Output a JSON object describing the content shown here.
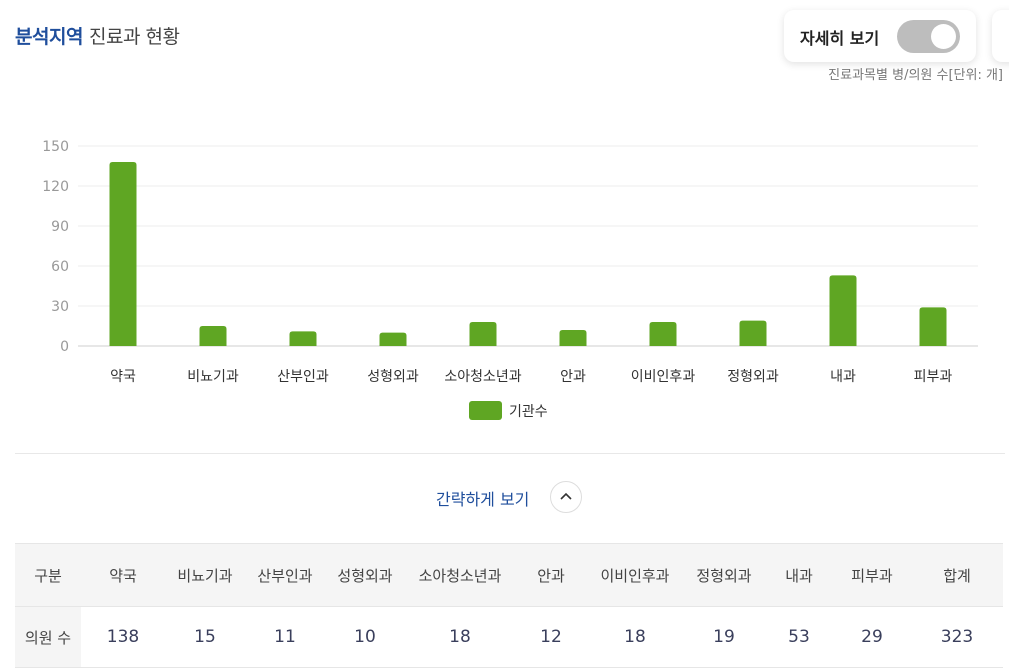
{
  "header": {
    "title_accent": "분석지역",
    "title_rest": "진료과 현황",
    "toggle_label": "자세히 보기",
    "toggle_on": false,
    "unit_note": "진료과목별 병/의원 수[단위: 개]"
  },
  "chart_data": {
    "type": "bar",
    "categories": [
      "약국",
      "비뇨기과",
      "산부인과",
      "성형외과",
      "소아청소년과",
      "안과",
      "이비인후과",
      "정형외과",
      "내과",
      "피부과"
    ],
    "series": [
      {
        "name": "기관수",
        "values": [
          138,
          15,
          11,
          10,
          18,
          12,
          18,
          19,
          53,
          29
        ],
        "color": "#5fa623"
      }
    ],
    "ylim": [
      0,
      150
    ],
    "yticks": [
      0,
      30,
      60,
      90,
      120,
      150
    ],
    "grid": true,
    "legend_position": "bottom"
  },
  "collapse": {
    "label": "간략하게 보기"
  },
  "table": {
    "headers": [
      "구분",
      "약국",
      "비뇨기과",
      "산부인과",
      "성형외과",
      "소아청소년과",
      "안과",
      "이비인후과",
      "정형외과",
      "내과",
      "피부과",
      "합계"
    ],
    "row_label": "의원 수",
    "values": [
      "138",
      "15",
      "11",
      "10",
      "18",
      "12",
      "18",
      "19",
      "53",
      "29",
      "323"
    ]
  }
}
